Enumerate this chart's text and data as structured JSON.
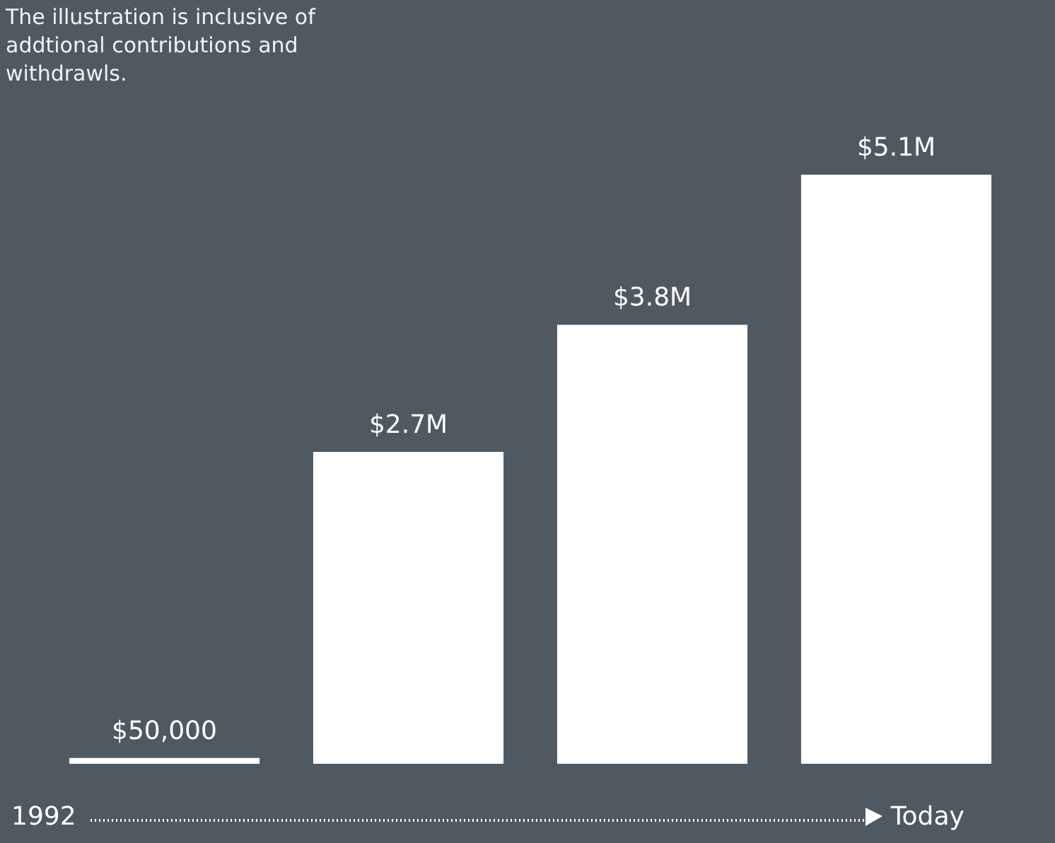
{
  "chart_data": {
    "type": "bar",
    "categories": [
      null,
      null,
      null,
      null
    ],
    "values": [
      50000,
      2700000,
      3800000,
      5100000
    ],
    "value_labels": [
      "$50,000",
      "$2.7M",
      "$3.8M",
      "$5.1M"
    ],
    "color": "#ffffff",
    "annotations": [
      "The illustration is inclusive of addtional contributions and withdrawls.",
      "1992",
      "Today"
    ]
  }
}
